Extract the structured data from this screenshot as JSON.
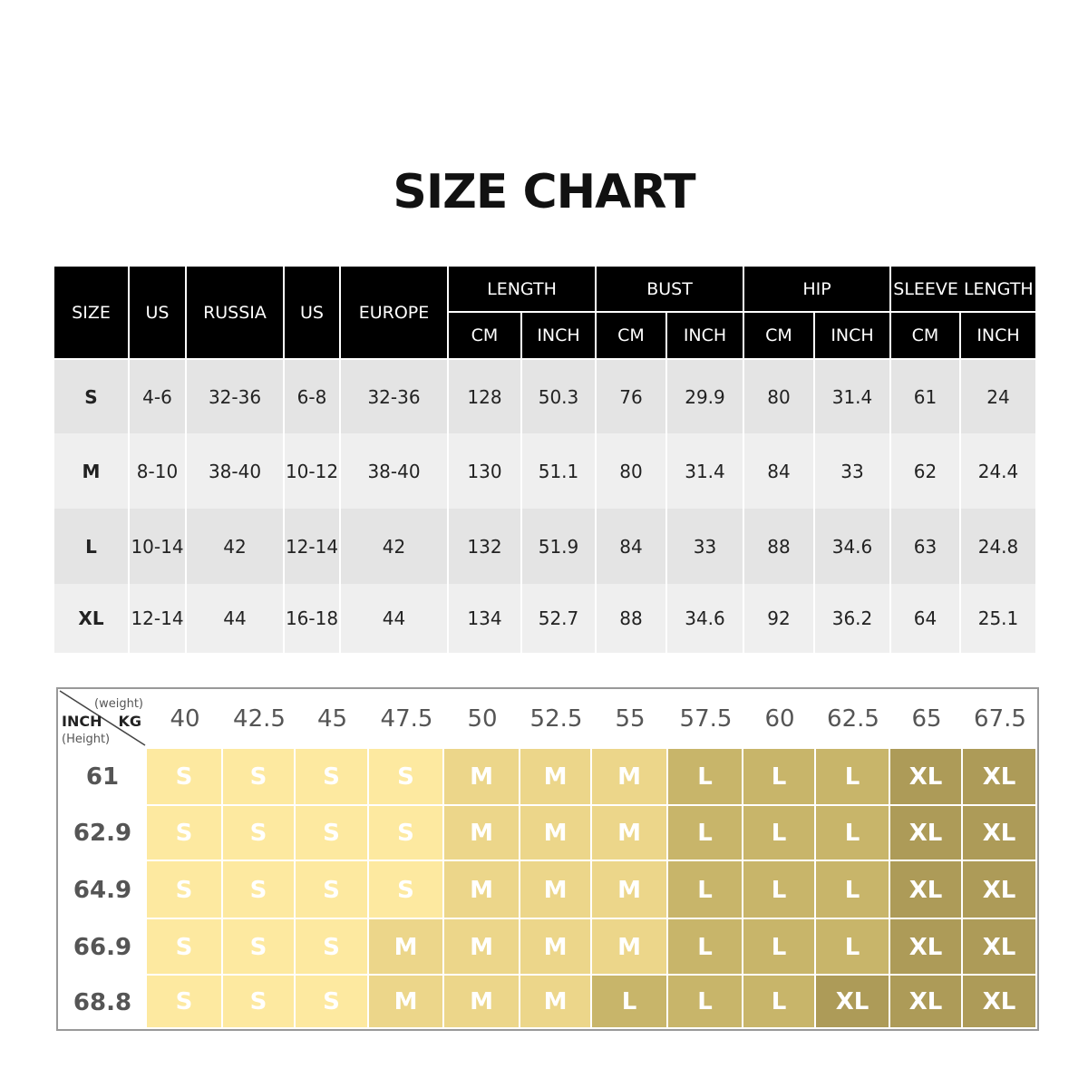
{
  "title": "SIZE CHART",
  "measure_table": {
    "headers": {
      "size": "SIZE",
      "us1": "US",
      "russia": "RUSSIA",
      "us2": "US",
      "europe": "EUROPE",
      "length": "LENGTH",
      "bust": "BUST",
      "hip": "HIP",
      "sleeve": "SLEEVE LENGTH",
      "cm": "CM",
      "inch": "INCH"
    },
    "rows": [
      [
        "S",
        "4-6",
        "32-36",
        "6-8",
        "32-36",
        "128",
        "50.3",
        "76",
        "29.9",
        "80",
        "31.4",
        "61",
        "24"
      ],
      [
        "M",
        "8-10",
        "38-40",
        "10-12",
        "38-40",
        "130",
        "51.1",
        "80",
        "31.4",
        "84",
        "33",
        "62",
        "24.4"
      ],
      [
        "L",
        "10-14",
        "42",
        "12-14",
        "42",
        "132",
        "51.9",
        "84",
        "33",
        "88",
        "34.6",
        "63",
        "24.8"
      ],
      [
        "XL",
        "12-14",
        "44",
        "16-18",
        "44",
        "134",
        "52.7",
        "88",
        "34.6",
        "92",
        "36.2",
        "64",
        "25.1"
      ]
    ]
  },
  "fit_grid": {
    "corner": {
      "weight": "(weight)",
      "kg": "KG",
      "inch": "INCH",
      "height": "(Height)"
    },
    "weights": [
      "40",
      "42.5",
      "45",
      "47.5",
      "50",
      "52.5",
      "55",
      "57.5",
      "60",
      "62.5",
      "65",
      "67.5"
    ],
    "heights": [
      "61",
      "62.9",
      "64.9",
      "66.9",
      "68.8"
    ],
    "sizes": [
      [
        "S",
        "S",
        "S",
        "S",
        "M",
        "M",
        "M",
        "L",
        "L",
        "L",
        "XL",
        "XL"
      ],
      [
        "S",
        "S",
        "S",
        "S",
        "M",
        "M",
        "M",
        "L",
        "L",
        "L",
        "XL",
        "XL"
      ],
      [
        "S",
        "S",
        "S",
        "S",
        "M",
        "M",
        "M",
        "L",
        "L",
        "L",
        "XL",
        "XL"
      ],
      [
        "S",
        "S",
        "S",
        "M",
        "M",
        "M",
        "M",
        "L",
        "L",
        "L",
        "XL",
        "XL"
      ],
      [
        "S",
        "S",
        "S",
        "M",
        "M",
        "M",
        "L",
        "L",
        "L",
        "XL",
        "XL",
        "XL"
      ]
    ],
    "colors": {
      "S": "#fde9a0",
      "M": "#ecd68a",
      "L": "#c8b56a",
      "XL": "#ad9b58"
    }
  }
}
